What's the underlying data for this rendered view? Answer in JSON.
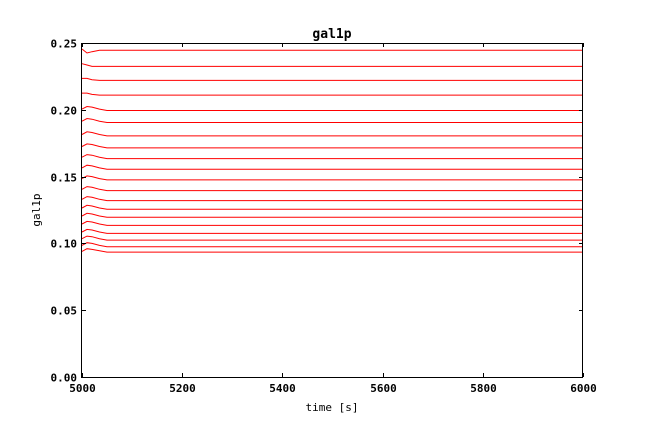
{
  "chart_data": {
    "type": "line",
    "title": "gal1p",
    "xlabel": "time [s]",
    "ylabel": "gal1p",
    "xlim": [
      5000,
      6000
    ],
    "ylim": [
      0.0,
      0.25
    ],
    "xticks": [
      "5000",
      "5200",
      "5400",
      "5600",
      "5800",
      "6000"
    ],
    "yticks": [
      "0.00",
      "0.05",
      "0.10",
      "0.15",
      "0.20",
      "0.25"
    ],
    "grid": false,
    "line_color": "#ff0000",
    "series": [
      {
        "x": [
          5000,
          5010,
          5020,
          5035,
          5050,
          5070,
          6000
        ],
        "y": [
          0.094,
          0.096,
          0.0955,
          0.0945,
          0.0935,
          0.0935,
          0.0935
        ]
      },
      {
        "x": [
          5000,
          5010,
          5020,
          5035,
          5050,
          5070,
          6000
        ],
        "y": [
          0.0985,
          0.1005,
          0.1,
          0.0985,
          0.0975,
          0.0975,
          0.0975
        ]
      },
      {
        "x": [
          5000,
          5010,
          5020,
          5035,
          5050,
          5070,
          6000
        ],
        "y": [
          0.1035,
          0.1055,
          0.105,
          0.1035,
          0.1025,
          0.1025,
          0.1025
        ]
      },
      {
        "x": [
          5000,
          5010,
          5020,
          5035,
          5050,
          5070,
          6000
        ],
        "y": [
          0.1085,
          0.1105,
          0.11,
          0.1085,
          0.1075,
          0.1075,
          0.1075
        ]
      },
      {
        "x": [
          5000,
          5010,
          5020,
          5035,
          5050,
          5070,
          6000
        ],
        "y": [
          0.1145,
          0.1165,
          0.116,
          0.1145,
          0.1135,
          0.1135,
          0.1135
        ]
      },
      {
        "x": [
          5000,
          5010,
          5020,
          5035,
          5050,
          5070,
          6000
        ],
        "y": [
          0.1205,
          0.1225,
          0.122,
          0.1205,
          0.1195,
          0.1195,
          0.1195
        ]
      },
      {
        "x": [
          5000,
          5010,
          5020,
          5035,
          5050,
          5070,
          6000
        ],
        "y": [
          0.1265,
          0.1285,
          0.128,
          0.1265,
          0.1255,
          0.1255,
          0.1255
        ]
      },
      {
        "x": [
          5000,
          5010,
          5020,
          5035,
          5050,
          5070,
          6000
        ],
        "y": [
          0.133,
          0.135,
          0.1345,
          0.133,
          0.132,
          0.132,
          0.132
        ]
      },
      {
        "x": [
          5000,
          5010,
          5020,
          5035,
          5050,
          5070,
          6000
        ],
        "y": [
          0.1405,
          0.1425,
          0.142,
          0.1405,
          0.1395,
          0.1395,
          0.1395
        ]
      },
      {
        "x": [
          5000,
          5010,
          5020,
          5035,
          5050,
          5070,
          6000
        ],
        "y": [
          0.1485,
          0.1505,
          0.15,
          0.1485,
          0.1475,
          0.1475,
          0.1475
        ]
      },
      {
        "x": [
          5000,
          5010,
          5020,
          5035,
          5050,
          5070,
          6000
        ],
        "y": [
          0.1565,
          0.1585,
          0.158,
          0.1565,
          0.1555,
          0.1555,
          0.1555
        ]
      },
      {
        "x": [
          5000,
          5010,
          5020,
          5035,
          5050,
          5070,
          6000
        ],
        "y": [
          0.1645,
          0.1665,
          0.166,
          0.1645,
          0.1635,
          0.1635,
          0.1635
        ]
      },
      {
        "x": [
          5000,
          5010,
          5020,
          5035,
          5050,
          5070,
          6000
        ],
        "y": [
          0.1725,
          0.1745,
          0.174,
          0.1725,
          0.1715,
          0.1715,
          0.1715
        ]
      },
      {
        "x": [
          5000,
          5010,
          5020,
          5035,
          5050,
          5070,
          6000
        ],
        "y": [
          0.1815,
          0.1835,
          0.183,
          0.1815,
          0.1805,
          0.1805,
          0.1805
        ]
      },
      {
        "x": [
          5000,
          5010,
          5020,
          5035,
          5050,
          5070,
          6000
        ],
        "y": [
          0.1915,
          0.1935,
          0.193,
          0.1915,
          0.1905,
          0.1905,
          0.1905
        ]
      },
      {
        "x": [
          5000,
          5010,
          5020,
          5035,
          5050,
          5070,
          6000
        ],
        "y": [
          0.2005,
          0.2025,
          0.202,
          0.2005,
          0.1995,
          0.1995,
          0.1995
        ]
      },
      {
        "x": [
          5000,
          5010,
          5020,
          5035,
          5050,
          5070,
          6000
        ],
        "y": [
          0.2125,
          0.2125,
          0.2115,
          0.211,
          0.211,
          0.211,
          0.211
        ]
      },
      {
        "x": [
          5000,
          5010,
          5020,
          5035,
          5050,
          5070,
          6000
        ],
        "y": [
          0.2235,
          0.2235,
          0.2225,
          0.222,
          0.222,
          0.222,
          0.222
        ]
      },
      {
        "x": [
          5000,
          5010,
          5020,
          5035,
          5050,
          5070,
          6000
        ],
        "y": [
          0.2345,
          0.2335,
          0.2325,
          0.2325,
          0.2325,
          0.2325,
          0.2325
        ]
      },
      {
        "x": [
          5000,
          5010,
          5020,
          5035,
          5050,
          5070,
          6000
        ],
        "y": [
          0.2455,
          0.2425,
          0.2435,
          0.2445,
          0.2445,
          0.2445,
          0.2445
        ]
      }
    ]
  }
}
